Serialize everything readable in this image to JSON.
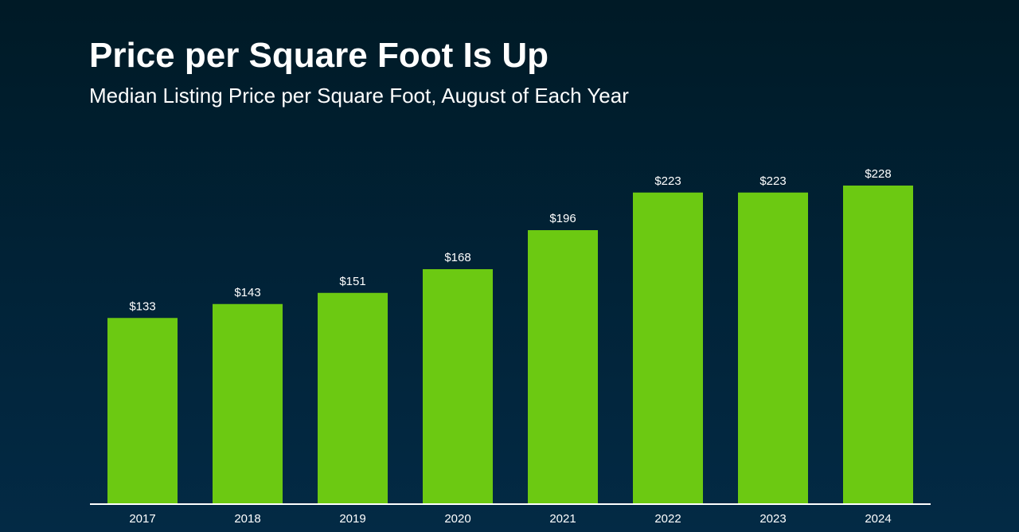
{
  "header": {
    "title": "Price per Square Foot Is Up",
    "subtitle": "Median Listing Price per Square Foot, August of Each Year"
  },
  "colors": {
    "bar": "#6cc912",
    "axis": "#ffffff",
    "text": "#ffffff"
  },
  "chart_data": {
    "type": "bar",
    "title": "Price per Square Foot Is Up",
    "subtitle": "Median Listing Price per Square Foot, August of Each Year",
    "categories": [
      "2017",
      "2018",
      "2019",
      "2020",
      "2021",
      "2022",
      "2023",
      "2024"
    ],
    "values": [
      133,
      143,
      151,
      168,
      196,
      223,
      223,
      228
    ],
    "labels": [
      "$133",
      "$143",
      "$151",
      "$168",
      "$196",
      "$223",
      "$223",
      "$228"
    ],
    "xlabel": "",
    "ylabel": "",
    "ylim": [
      0,
      228
    ],
    "grid": false,
    "legend": "none"
  }
}
